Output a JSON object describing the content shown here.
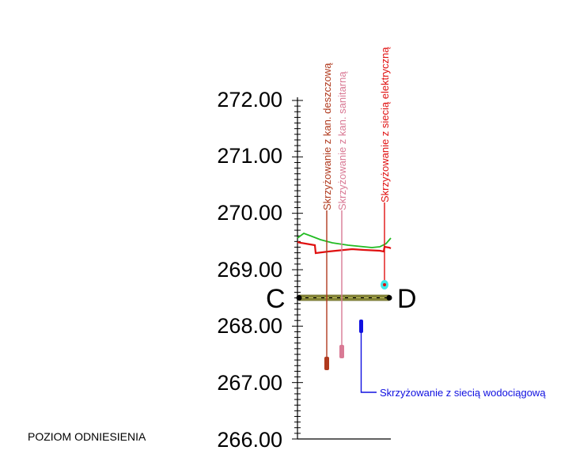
{
  "datum_label": "POZIOM ODNIESIENIA",
  "section": {
    "start": "C",
    "end": "D"
  },
  "elevations": [
    "272.00",
    "271.00",
    "270.00",
    "269.00",
    "268.00",
    "267.00",
    "266.00"
  ],
  "crossings": {
    "storm_sewer": "Skrzyżowanie z kan. deszczową",
    "sanitary_sewer": "Skrzyżowanie z kan. sanitarną",
    "power": "Skrzyżowanie z siecią elektryczną",
    "water": "Skrzyżowanie z siecią wodociągową"
  },
  "colors": {
    "storm_sewer": "#b03a1e",
    "sanitary_sewer": "#d97a95",
    "power": "#e01010",
    "water": "#1010e0",
    "terrain": "#22bb22",
    "design_line": "#e01010",
    "pipe_fill": "#8a8a3a"
  }
}
